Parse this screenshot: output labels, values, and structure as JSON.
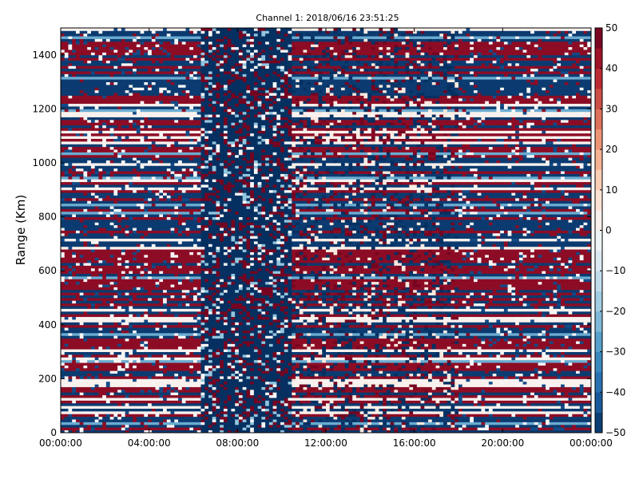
{
  "chart_data": {
    "type": "heatmap",
    "title": "Channel 1: 2018/06/16 23:51:25",
    "xlabel": "",
    "ylabel": "Range (Km)",
    "x_ticks": [
      "00:00:00",
      "04:00:00",
      "08:00:00",
      "12:00:00",
      "16:00:00",
      "20:00:00",
      "00:00:00"
    ],
    "x_range_hours": [
      0,
      24
    ],
    "y_ticks": [
      0,
      200,
      400,
      600,
      800,
      1000,
      1200,
      1400
    ],
    "ylim": [
      0,
      1500
    ],
    "colorbar": {
      "ticks": [
        50,
        40,
        30,
        20,
        10,
        0,
        -10,
        -20,
        -30,
        -40,
        -50
      ],
      "range": [
        -50,
        50
      ],
      "colormap": "RdBu_r"
    },
    "grid": false,
    "segments_hours": [
      {
        "from": 0,
        "to": 6.3,
        "pattern": "dense-banded"
      },
      {
        "from": 6.3,
        "to": 10.5,
        "pattern": "mostly-low"
      },
      {
        "from": 10.5,
        "to": 18,
        "pattern": "mixed"
      },
      {
        "from": 18,
        "to": 24,
        "pattern": "dense-banded"
      }
    ],
    "colors": {
      "low": "#053061",
      "mid": "#f7f7f7",
      "high": "#67001f"
    }
  }
}
